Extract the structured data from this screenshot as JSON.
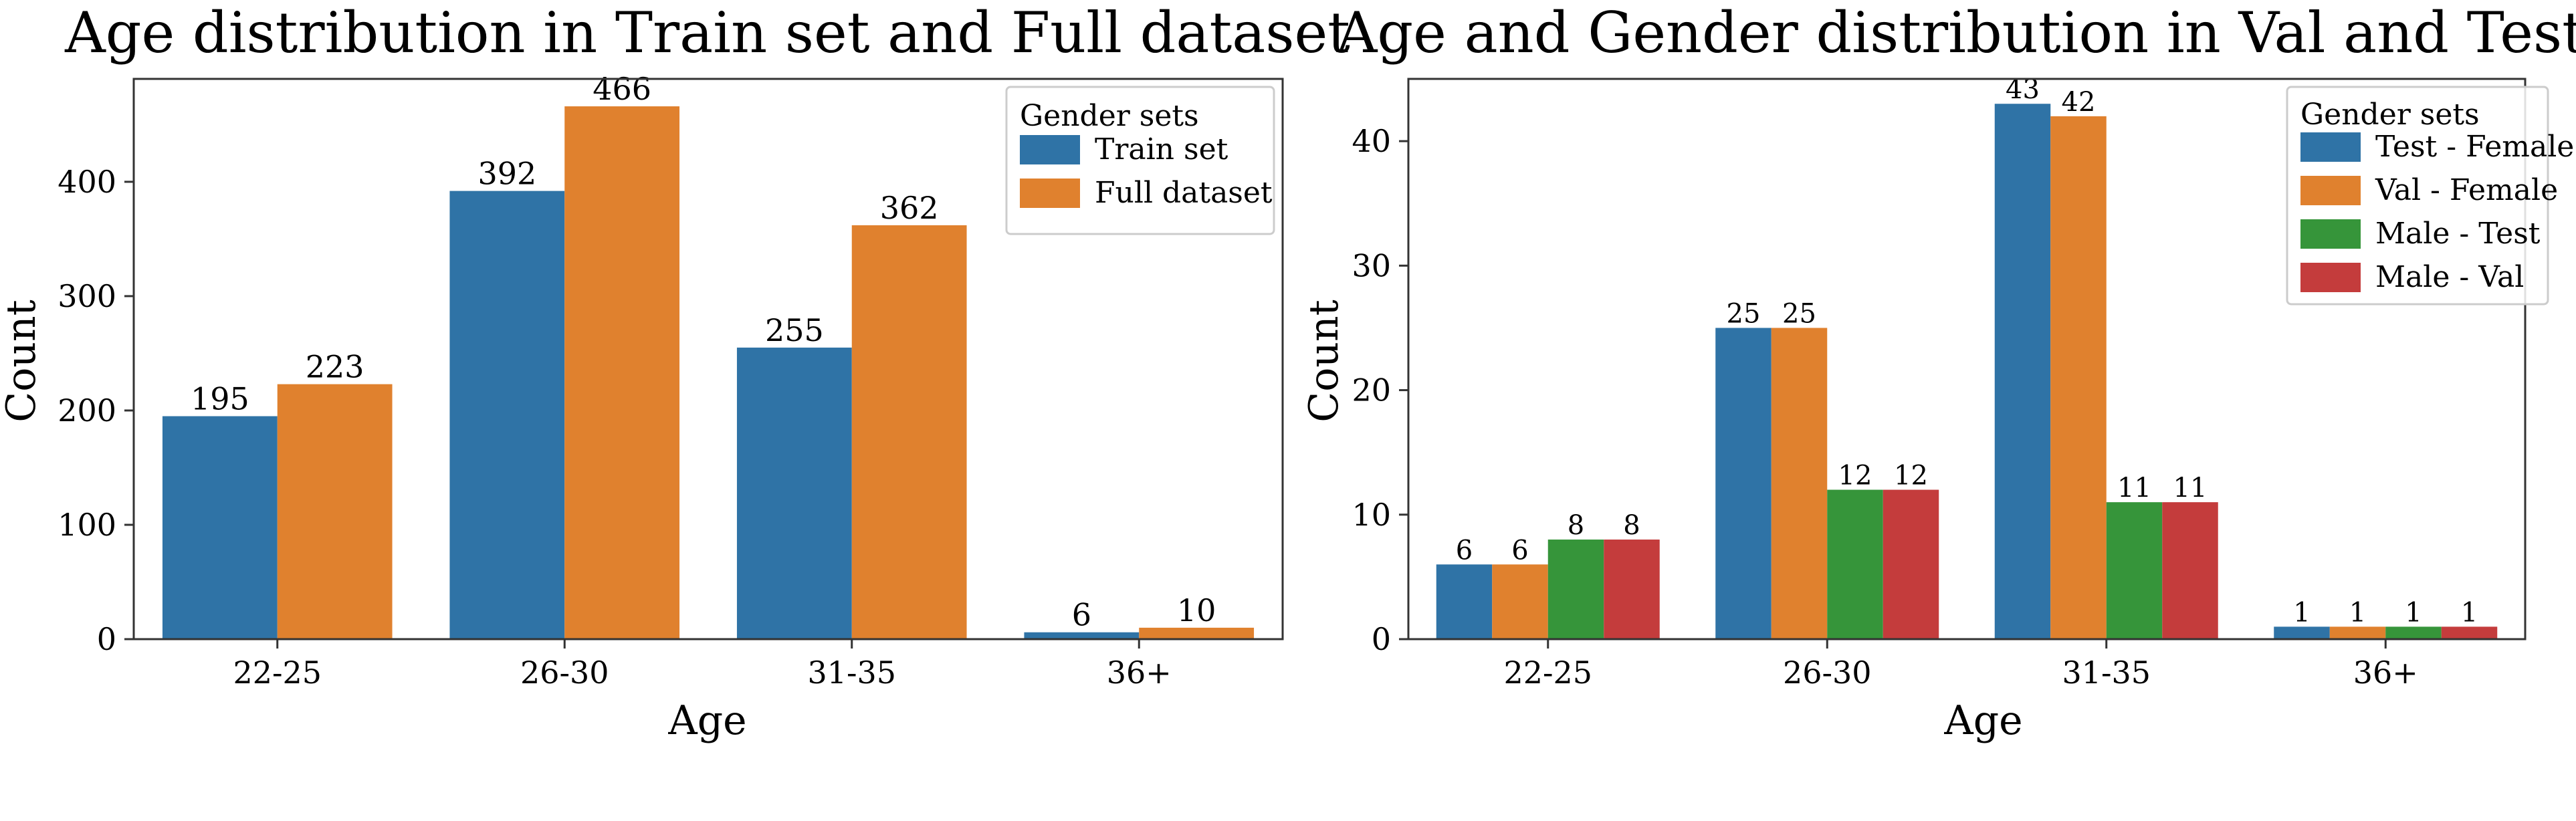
{
  "colors": {
    "blue": "#2f73a6",
    "orange": "#e0812e",
    "green": "#36953a",
    "red": "#c43c3c"
  },
  "chart_data": [
    {
      "type": "bar",
      "title": "Age distribution in Train set and Full dataset",
      "xlabel": "Age",
      "ylabel": "Count",
      "categories": [
        "22-25",
        "26-30",
        "31-35",
        "36+"
      ],
      "ylim": [
        0,
        490
      ],
      "yticks": [
        0,
        100,
        200,
        300,
        400
      ],
      "series": [
        {
          "name": "Train set",
          "color": "#2f73a6",
          "values": [
            195,
            392,
            255,
            6
          ]
        },
        {
          "name": "Full dataset",
          "color": "#e0812e",
          "values": [
            223,
            466,
            362,
            10
          ]
        }
      ],
      "legend_title": "Gender sets",
      "legend_position": "top-right"
    },
    {
      "type": "bar",
      "title": "Age and Gender distribution in Val and Test sets",
      "xlabel": "Age",
      "ylabel": "Count",
      "categories": [
        "22-25",
        "26-30",
        "31-35",
        "36+"
      ],
      "ylim": [
        0,
        45
      ],
      "yticks": [
        0,
        10,
        20,
        30,
        40
      ],
      "series": [
        {
          "name": "Test - Female",
          "color": "#2f73a6",
          "values": [
            6,
            25,
            43,
            1
          ]
        },
        {
          "name": "Val - Female",
          "color": "#e0812e",
          "values": [
            6,
            25,
            42,
            1
          ]
        },
        {
          "name": "Male - Test",
          "color": "#36953a",
          "values": [
            8,
            12,
            11,
            1
          ]
        },
        {
          "name": "Male - Val",
          "color": "#c43c3c",
          "values": [
            8,
            12,
            11,
            1
          ]
        }
      ],
      "legend_title": "Gender sets",
      "legend_position": "top-right"
    }
  ]
}
